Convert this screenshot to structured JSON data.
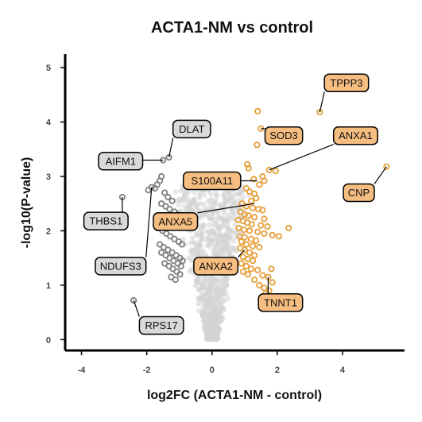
{
  "chart_data": {
    "type": "scatter",
    "title": "ACTA1-NM vs control",
    "xlabel": "log2FC (ACTA1-NM - control)",
    "ylabel": "-log10(P-value)",
    "xlim": [
      -4.5,
      5.9
    ],
    "ylim": [
      -0.2,
      5.25
    ],
    "x_ticks": [
      -4,
      -2,
      0,
      2,
      4
    ],
    "y_ticks": [
      0,
      1,
      2,
      3,
      4,
      5
    ],
    "colors": {
      "background_points": "#d3d3d3",
      "down": "#808080",
      "up": "#e69f3a",
      "down_label_fill": "#d9d9d9",
      "up_label_fill": "#f5bd80",
      "axis": "#000000"
    },
    "series": [
      {
        "group": "up",
        "points": [
          [
            3.3,
            4.18
          ],
          [
            1.4,
            4.2
          ],
          [
            1.5,
            3.88
          ],
          [
            1.38,
            3.58
          ],
          [
            5.35,
            3.18
          ],
          [
            1.08,
            3.22
          ],
          [
            1.12,
            3.15
          ],
          [
            1.75,
            3.12
          ],
          [
            1.95,
            3.1
          ],
          [
            1.55,
            3.0
          ],
          [
            1.28,
            2.95
          ],
          [
            1.6,
            2.92
          ],
          [
            1.45,
            2.85
          ],
          [
            1.05,
            2.78
          ],
          [
            1.15,
            2.72
          ],
          [
            1.3,
            2.68
          ],
          [
            1.35,
            2.6
          ],
          [
            1.2,
            2.55
          ],
          [
            0.92,
            2.5
          ],
          [
            1.05,
            2.45
          ],
          [
            1.25,
            2.42
          ],
          [
            1.42,
            2.4
          ],
          [
            1.55,
            2.38
          ],
          [
            0.88,
            2.35
          ],
          [
            1.0,
            2.3
          ],
          [
            1.12,
            2.28
          ],
          [
            1.3,
            2.25
          ],
          [
            1.6,
            2.22
          ],
          [
            0.8,
            2.2
          ],
          [
            0.95,
            2.18
          ],
          [
            1.08,
            2.15
          ],
          [
            1.22,
            2.12
          ],
          [
            1.5,
            2.1
          ],
          [
            1.7,
            2.08
          ],
          [
            2.35,
            2.05
          ],
          [
            0.82,
            2.05
          ],
          [
            0.98,
            2.02
          ],
          [
            1.15,
            2.0
          ],
          [
            1.4,
            1.98
          ],
          [
            1.6,
            1.95
          ],
          [
            1.85,
            1.92
          ],
          [
            2.05,
            1.9
          ],
          [
            0.85,
            1.9
          ],
          [
            1.0,
            1.88
          ],
          [
            1.2,
            1.85
          ],
          [
            1.35,
            1.82
          ],
          [
            0.9,
            1.8
          ],
          [
            1.05,
            1.75
          ],
          [
            1.25,
            1.72
          ],
          [
            1.45,
            1.7
          ],
          [
            0.86,
            1.68
          ],
          [
            1.0,
            1.65
          ],
          [
            1.15,
            1.6
          ],
          [
            1.3,
            1.55
          ],
          [
            0.95,
            1.52
          ],
          [
            1.1,
            1.48
          ],
          [
            1.25,
            1.45
          ],
          [
            0.9,
            1.4
          ],
          [
            1.05,
            1.35
          ],
          [
            1.2,
            1.3
          ],
          [
            1.4,
            1.28
          ],
          [
            0.95,
            1.25
          ],
          [
            1.1,
            1.2
          ],
          [
            1.55,
            1.18
          ],
          [
            1.72,
            1.15
          ],
          [
            1.3,
            1.1
          ],
          [
            1.85,
            1.05
          ],
          [
            1.6,
            0.95
          ],
          [
            1.75,
            0.9
          ],
          [
            1.65,
            0.85
          ],
          [
            1.82,
            1.3
          ],
          [
            1.45,
            1.0
          ]
        ]
      },
      {
        "group": "down",
        "points": [
          [
            -2.75,
            2.62
          ],
          [
            -1.5,
            3.3
          ],
          [
            -1.32,
            3.35
          ],
          [
            -2.4,
            0.72
          ],
          [
            -1.55,
            3.0
          ],
          [
            -1.6,
            2.92
          ],
          [
            -1.68,
            2.85
          ],
          [
            -1.75,
            2.78
          ],
          [
            -1.85,
            2.8
          ],
          [
            -1.95,
            2.75
          ],
          [
            -1.45,
            2.7
          ],
          [
            -1.35,
            2.62
          ],
          [
            -1.22,
            2.55
          ],
          [
            -1.55,
            2.5
          ],
          [
            -1.42,
            2.45
          ],
          [
            -1.3,
            2.4
          ],
          [
            -1.15,
            2.35
          ],
          [
            -1.05,
            2.3
          ],
          [
            -1.5,
            2.28
          ],
          [
            -1.38,
            2.22
          ],
          [
            -1.25,
            2.18
          ],
          [
            -1.12,
            2.12
          ],
          [
            -1.0,
            2.08
          ],
          [
            -1.65,
            2.05
          ],
          [
            -1.52,
            2.0
          ],
          [
            -1.4,
            1.95
          ],
          [
            -1.28,
            1.9
          ],
          [
            -1.15,
            1.85
          ],
          [
            -1.02,
            1.8
          ],
          [
            -0.92,
            1.75
          ],
          [
            -1.6,
            1.75
          ],
          [
            -1.48,
            1.7
          ],
          [
            -1.35,
            1.65
          ],
          [
            -1.22,
            1.6
          ],
          [
            -1.1,
            1.55
          ],
          [
            -0.98,
            1.5
          ],
          [
            -0.9,
            1.45
          ],
          [
            -1.55,
            1.6
          ],
          [
            -1.42,
            1.55
          ],
          [
            -1.3,
            1.5
          ],
          [
            -1.18,
            1.45
          ],
          [
            -1.05,
            1.4
          ],
          [
            -0.95,
            1.35
          ],
          [
            -1.45,
            1.4
          ],
          [
            -1.32,
            1.35
          ],
          [
            -1.2,
            1.3
          ],
          [
            -1.08,
            1.25
          ],
          [
            -0.98,
            1.2
          ],
          [
            -1.25,
            1.15
          ],
          [
            -1.12,
            1.1
          ]
        ]
      },
      {
        "group": "background",
        "points": []
      }
    ],
    "labels": [
      {
        "name": "TPPP3",
        "group": "up",
        "x": 3.3,
        "y": 4.18,
        "lx": 4.12,
        "ly": 4.72
      },
      {
        "name": "SOD3",
        "group": "up",
        "x": 1.5,
        "y": 3.88,
        "lx": 2.2,
        "ly": 3.75
      },
      {
        "name": "ANXA1",
        "group": "up",
        "x": 1.75,
        "y": 3.12,
        "lx": 4.4,
        "ly": 3.75
      },
      {
        "name": "CNP",
        "group": "up",
        "x": 5.35,
        "y": 3.18,
        "lx": 4.5,
        "ly": 2.7
      },
      {
        "name": "S100A11",
        "group": "up",
        "x": 1.38,
        "y": 2.92,
        "lx": 0.0,
        "ly": 2.92
      },
      {
        "name": "ANXA5",
        "group": "up",
        "x": 1.3,
        "y": 2.5,
        "lx": -1.12,
        "ly": 2.17
      },
      {
        "name": "ANXA2",
        "group": "up",
        "x": 1.0,
        "y": 1.65,
        "lx": 0.12,
        "ly": 1.35
      },
      {
        "name": "TNNT1",
        "group": "up",
        "x": 1.72,
        "y": 1.15,
        "lx": 2.1,
        "ly": 0.68
      },
      {
        "name": "DLAT",
        "group": "down",
        "x": -1.32,
        "y": 3.35,
        "lx": -0.62,
        "ly": 3.87
      },
      {
        "name": "AIFM1",
        "group": "down",
        "x": -1.5,
        "y": 3.3,
        "lx": -2.8,
        "ly": 3.28
      },
      {
        "name": "THBS1",
        "group": "down",
        "x": -2.75,
        "y": 2.62,
        "lx": -3.25,
        "ly": 2.18
      },
      {
        "name": "NDUFS3",
        "group": "down",
        "x": -1.85,
        "y": 2.8,
        "lx": -2.8,
        "ly": 1.35
      },
      {
        "name": "RPS17",
        "group": "down",
        "x": -2.4,
        "y": 0.72,
        "lx": -1.55,
        "ly": 0.26
      }
    ]
  }
}
